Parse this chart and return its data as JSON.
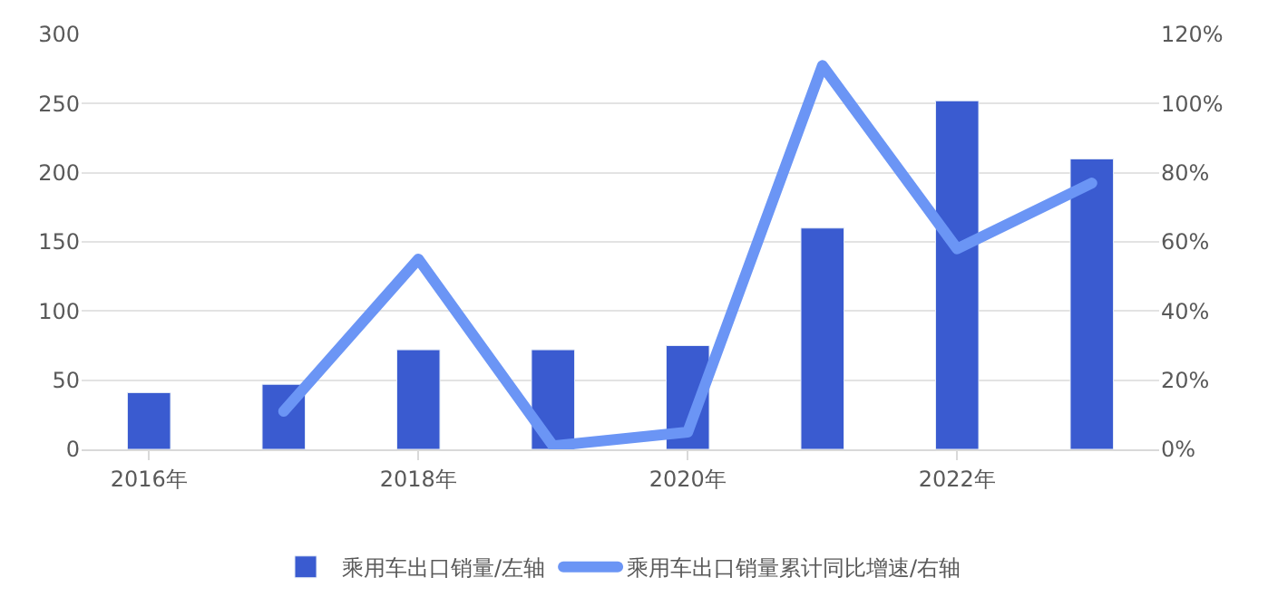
{
  "chart_data": {
    "type": "bar",
    "categories": [
      "2016年",
      null,
      "2018年",
      null,
      "2020年",
      null,
      "2022年",
      null
    ],
    "series": [
      {
        "name": "乘用车出口销量/左轴",
        "color": "#3a5bd0",
        "values": [
          41,
          47,
          72,
          72,
          75,
          160,
          252,
          210
        ]
      },
      {
        "name": "乘用车出口销量累计同比增速/右轴",
        "color": "#6b95f5",
        "type": "line",
        "axis": "y2",
        "values": [
          null,
          11,
          55,
          1,
          5,
          111,
          58,
          77
        ]
      }
    ],
    "ylim": [
      0,
      300
    ],
    "yticks": [
      0,
      50,
      100,
      150,
      200,
      250,
      300
    ],
    "y2lim": [
      0,
      120
    ],
    "y2ticks": [
      {
        "value": 0,
        "label": "0%"
      },
      {
        "value": 20,
        "label": "20%"
      },
      {
        "value": 40,
        "label": "40%"
      },
      {
        "value": 60,
        "label": "60%"
      },
      {
        "value": 80,
        "label": "80%"
      },
      {
        "value": 100,
        "label": "100%"
      },
      {
        "value": 120,
        "label": "120%"
      }
    ],
    "grid": "y",
    "legend": "bottom",
    "marker": "none",
    "line_style": "solid"
  }
}
